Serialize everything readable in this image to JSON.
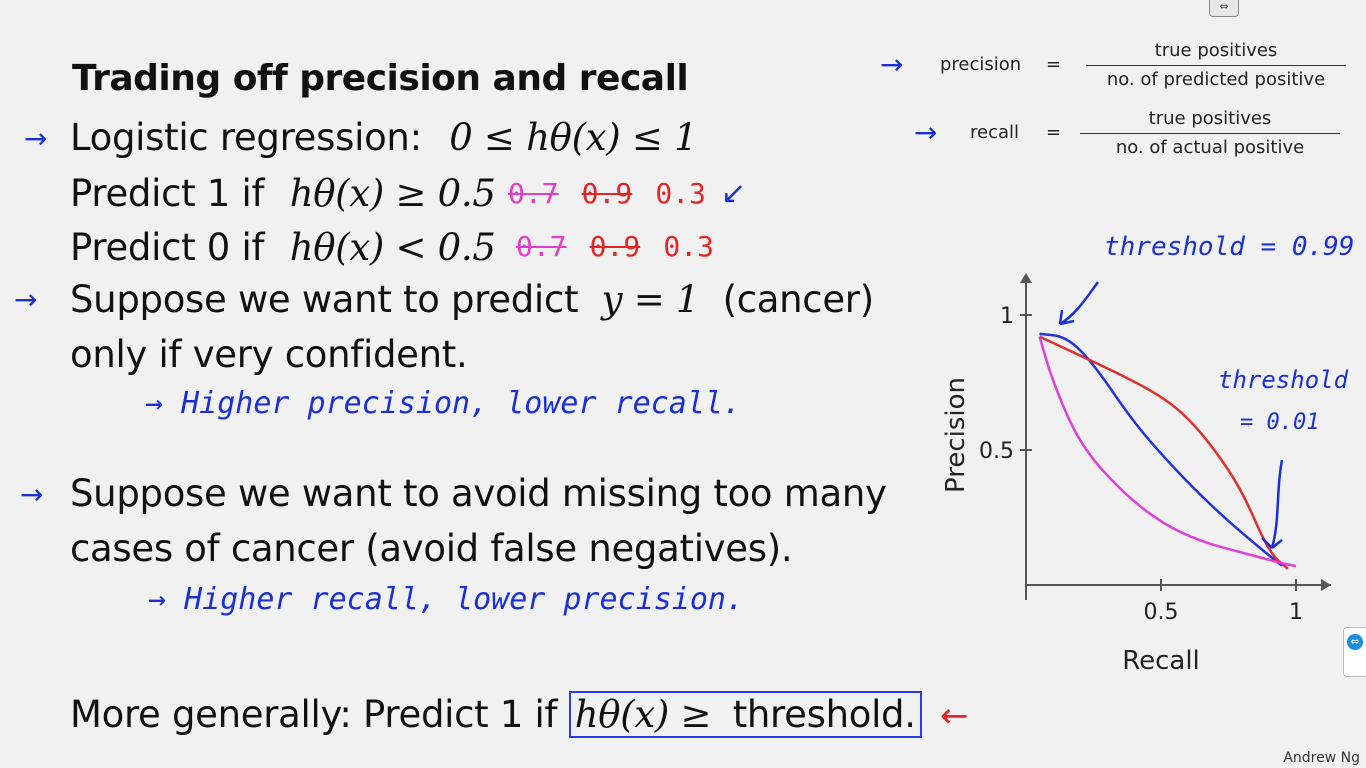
{
  "title": "Trading off precision and recall",
  "lines": {
    "logistic": "Logistic regression:",
    "logistic_math": "0 ≤ hθ(x) ≤ 1",
    "predict1": "Predict 1 if",
    "predict1_math": "hθ(x) ≥ 0.5",
    "predict0": "Predict 0 if",
    "predict0_math": "hθ(x) < 0.5",
    "suppose1a": "Suppose we want to predict",
    "suppose1_math": "y = 1",
    "suppose1b": "(cancer)",
    "suppose1c": "only if very confident.",
    "suppose2a": "Suppose we want to avoid missing too many",
    "suppose2b": "cases of cancer (avoid false negatives).",
    "general": "More generally: Predict 1 if",
    "general_math": "hθ(x) ≥",
    "general_threshold": "threshold."
  },
  "handwriting": {
    "p1_vals": [
      "0.7",
      "0.9",
      "0.3"
    ],
    "p0_vals": [
      "0.7",
      "0.9",
      "0.3"
    ],
    "note1": "→ Higher precision, lower recall.",
    "note2": "→ Higher recall, lower precision.",
    "threshold_high": "threshold = 0.99",
    "threshold_low_a": "threshold",
    "threshold_low_b": "= 0.01"
  },
  "formulas": {
    "precision_label": "precision",
    "precision_eq": "=",
    "precision_num": "true positives",
    "precision_den": "no. of predicted positive",
    "recall_label": "recall",
    "recall_eq": "=",
    "recall_num": "true positives",
    "recall_den": "no. of actual positive"
  },
  "chart_data": {
    "type": "line",
    "xlabel": "Recall",
    "ylabel": "Precision",
    "xlim": [
      0,
      1
    ],
    "ylim": [
      0,
      1
    ],
    "xticks": [
      "0.5",
      "1"
    ],
    "yticks": [
      "0.5",
      "1"
    ],
    "series": [
      {
        "color": "#2233dd",
        "x": [
          0.05,
          0.15,
          0.25,
          0.4,
          0.55,
          0.7,
          0.85,
          0.95
        ],
        "y": [
          0.93,
          0.92,
          0.82,
          0.6,
          0.43,
          0.28,
          0.15,
          0.07
        ]
      },
      {
        "color": "#e03030",
        "x": [
          0.05,
          0.2,
          0.35,
          0.5,
          0.6,
          0.7,
          0.8,
          0.9,
          0.97
        ],
        "y": [
          0.92,
          0.85,
          0.78,
          0.7,
          0.62,
          0.5,
          0.35,
          0.12,
          0.06
        ]
      },
      {
        "color": "#e040d8",
        "x": [
          0.05,
          0.1,
          0.2,
          0.35,
          0.5,
          0.65,
          0.8,
          0.95,
          1.0
        ],
        "y": [
          0.92,
          0.75,
          0.52,
          0.35,
          0.23,
          0.16,
          0.12,
          0.08,
          0.07
        ]
      }
    ]
  },
  "credit": "Andrew Ng",
  "colors": {
    "ink_blue": "#1a2fd6",
    "ink_red": "#e52525",
    "ink_magenta": "#e040c8"
  }
}
